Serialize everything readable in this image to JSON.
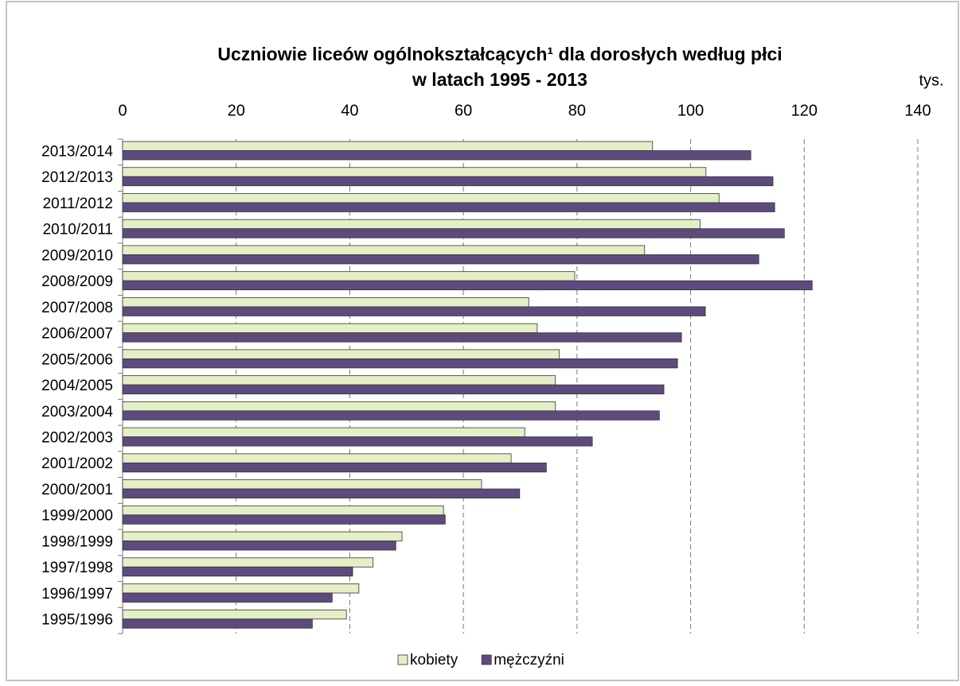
{
  "chart_data": {
    "type": "hbar",
    "title": "Uczniowie liceów ogólnokształcących¹ dla dorosłych według płci",
    "subtitle": "w latach 1995 - 2013",
    "x_label": "tys.",
    "categories": [
      "2013/2014",
      "2012/2013",
      "2011/2012",
      "2010/2011",
      "2009/2010",
      "2008/2009",
      "2007/2008",
      "2006/2007",
      "2005/2006",
      "2004/2005",
      "2003/2004",
      "2002/2003",
      "2001/2002",
      "2000/2001",
      "1999/2000",
      "1998/1999",
      "1997/1998",
      "1996/1997",
      "1995/1996"
    ],
    "series": [
      {
        "name": "kobiety",
        "color": "#e4efc6",
        "values": [
          93.3,
          102.7,
          105,
          101.7,
          91.9,
          79.6,
          71.5,
          73,
          76.9,
          76.2,
          76.2,
          70.8,
          68.4,
          63.2,
          56.5,
          49.2,
          44.1,
          41.6,
          39.4
        ]
      },
      {
        "name": "mężczyźni",
        "color": "#5f4a7d",
        "values": [
          110.6,
          114.5,
          114.8,
          116.5,
          112,
          121.4,
          102.6,
          98.4,
          97.7,
          95.3,
          94.5,
          82.7,
          74.6,
          69.9,
          56.8,
          48.1,
          40.5,
          36.9,
          33.4
        ]
      }
    ],
    "xlim": [
      0,
      140
    ],
    "xticks": [
      0,
      20,
      40,
      60,
      80,
      100,
      120,
      140
    ],
    "grid": true,
    "legend": "bottom"
  }
}
